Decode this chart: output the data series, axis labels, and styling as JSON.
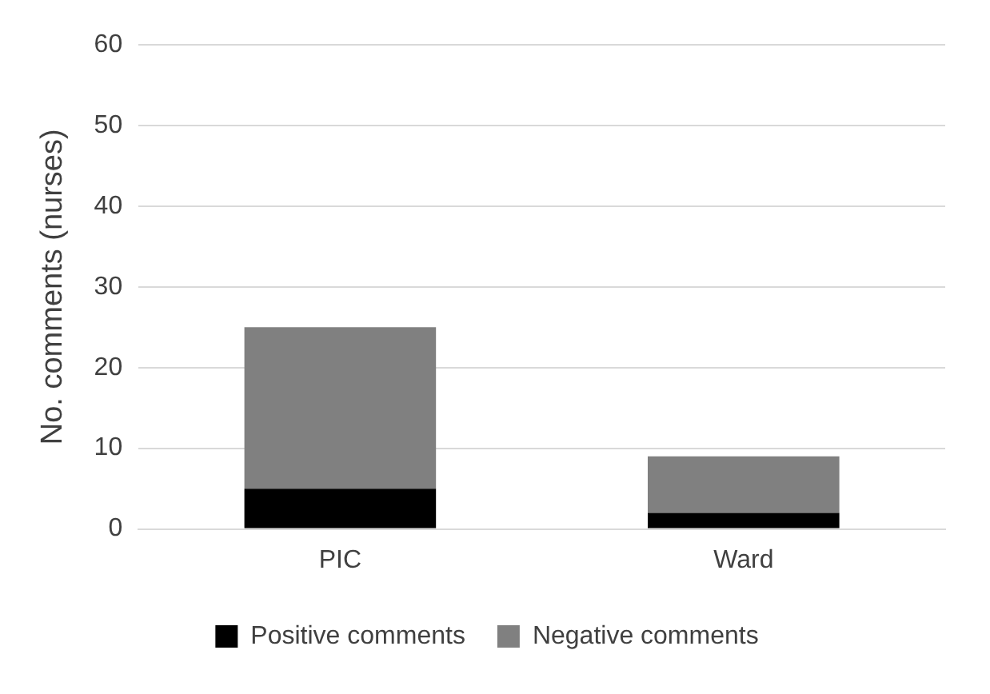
{
  "chart_data": {
    "type": "bar",
    "stacked": true,
    "ylabel": "No. comments (nurses)",
    "categories": [
      "PIC",
      "Ward"
    ],
    "series": [
      {
        "name": "Positive comments",
        "color": "#000000",
        "values": [
          5,
          2
        ]
      },
      {
        "name": "Negative comments",
        "color": "#808080",
        "values": [
          20,
          7
        ]
      }
    ],
    "ylim": [
      0,
      60
    ],
    "yticks": [
      0,
      10,
      20,
      30,
      40,
      50,
      60
    ],
    "grid": "y",
    "legend": "bottom"
  }
}
